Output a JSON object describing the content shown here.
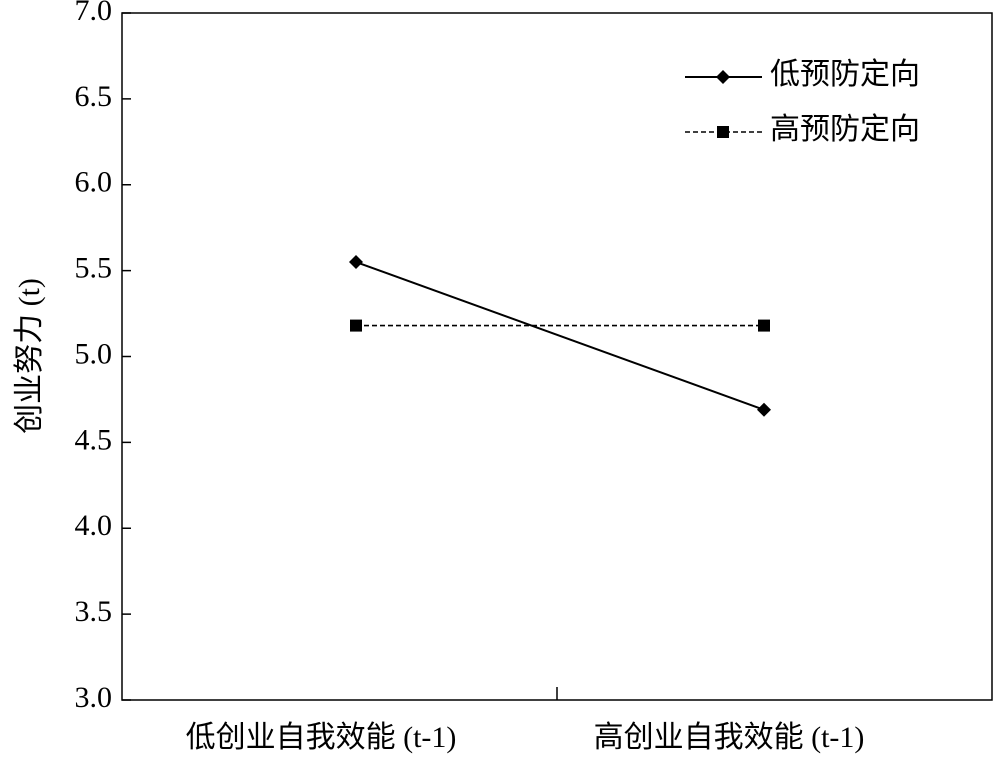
{
  "chart_data": {
    "type": "line",
    "title": "",
    "xlabel": "",
    "ylabel": "创业努力 (t)",
    "categories": [
      "低创业自我效能 (t-1)",
      "高创业自我效能 (t-1)"
    ],
    "ylim": [
      3.0,
      7.0
    ],
    "yticks": [
      "3.0",
      "3.5",
      "4.0",
      "4.5",
      "5.0",
      "5.5",
      "6.0",
      "6.5",
      "7.0"
    ],
    "grid": false,
    "legend_position": "top-right",
    "series": [
      {
        "name": "低预防定向",
        "values": [
          5.55,
          4.69
        ],
        "marker": "diamond",
        "line": "solid",
        "color": "#000000"
      },
      {
        "name": "高预防定向",
        "values": [
          5.18,
          5.18
        ],
        "marker": "square",
        "line": "dashed",
        "color": "#000000"
      }
    ]
  }
}
